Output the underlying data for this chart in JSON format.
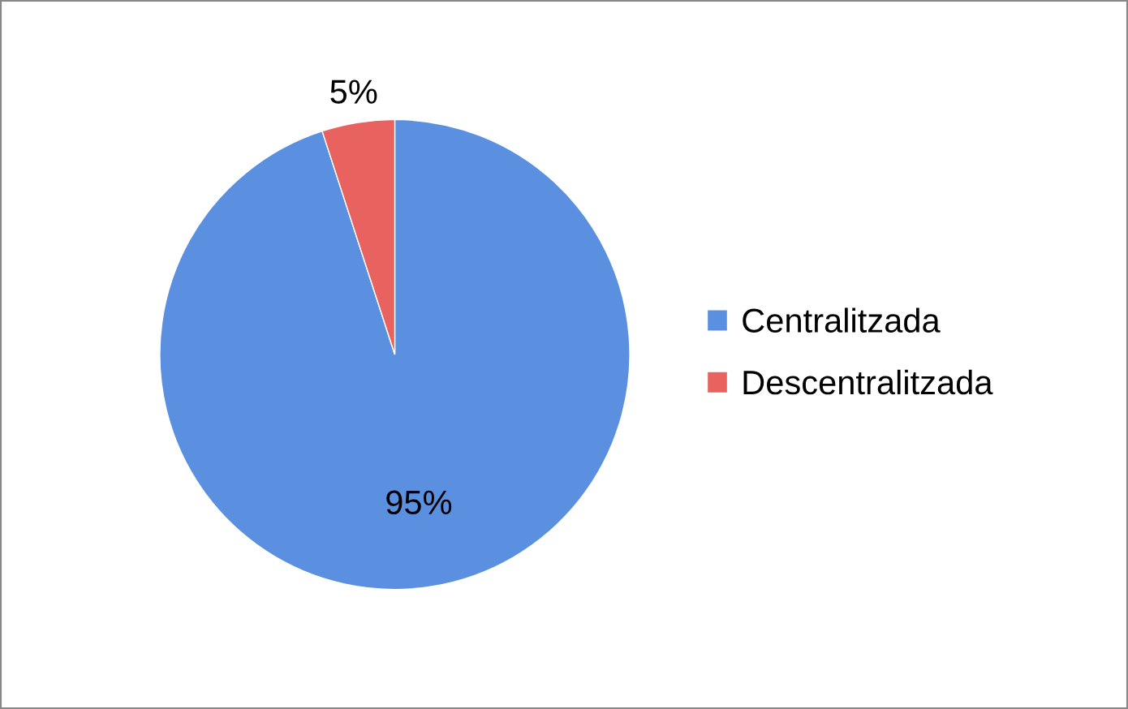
{
  "chart_data": {
    "type": "pie",
    "categories": [
      "Centralitzada",
      "Descentralitzada"
    ],
    "values": [
      95,
      5
    ],
    "colors": [
      "#5b8fe0",
      "#e8625f"
    ],
    "value_labels": [
      "95%",
      "5%"
    ],
    "legend": "right"
  }
}
